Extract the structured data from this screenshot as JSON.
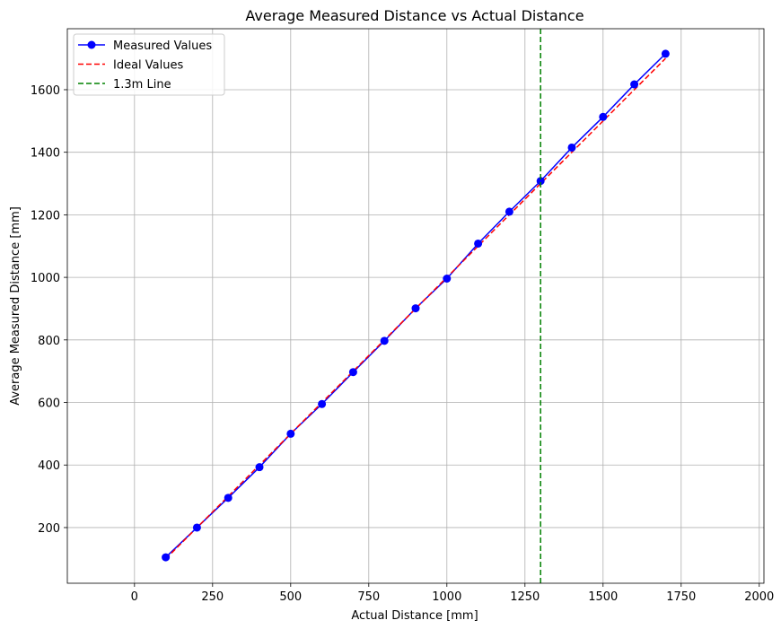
{
  "chart_data": {
    "type": "line",
    "title": "Average Measured Distance vs Actual Distance",
    "xlabel": "Actual Distance [mm]",
    "ylabel": "Average Measured Distance [mm]",
    "xlim": [
      -215,
      2015
    ],
    "ylim": [
      22,
      1795
    ],
    "xticks": [
      0,
      250,
      500,
      750,
      1000,
      1250,
      1500,
      1750,
      2000
    ],
    "yticks": [
      200,
      400,
      600,
      800,
      1000,
      1200,
      1400,
      1600
    ],
    "grid": true,
    "legend_position": "top-left",
    "series": [
      {
        "name": "Measured Values",
        "style": "solid-with-markers",
        "color": "#0000ff",
        "x": [
          100,
          200,
          300,
          400,
          500,
          600,
          700,
          800,
          900,
          1000,
          1100,
          1200,
          1300,
          1400,
          1500,
          1600,
          1700
        ],
        "y": [
          105,
          200,
          295,
          393,
          500,
          595,
          697,
          797,
          901,
          996,
          1108,
          1210,
          1308,
          1415,
          1513,
          1617,
          1715
        ]
      },
      {
        "name": "Ideal Values",
        "style": "dashed",
        "color": "#ff0000",
        "x": [
          100,
          1700
        ],
        "y": [
          100,
          1700
        ]
      },
      {
        "name": "1.3m Line",
        "style": "dashed-vertical",
        "color": "#008000",
        "x": 1300
      }
    ]
  }
}
